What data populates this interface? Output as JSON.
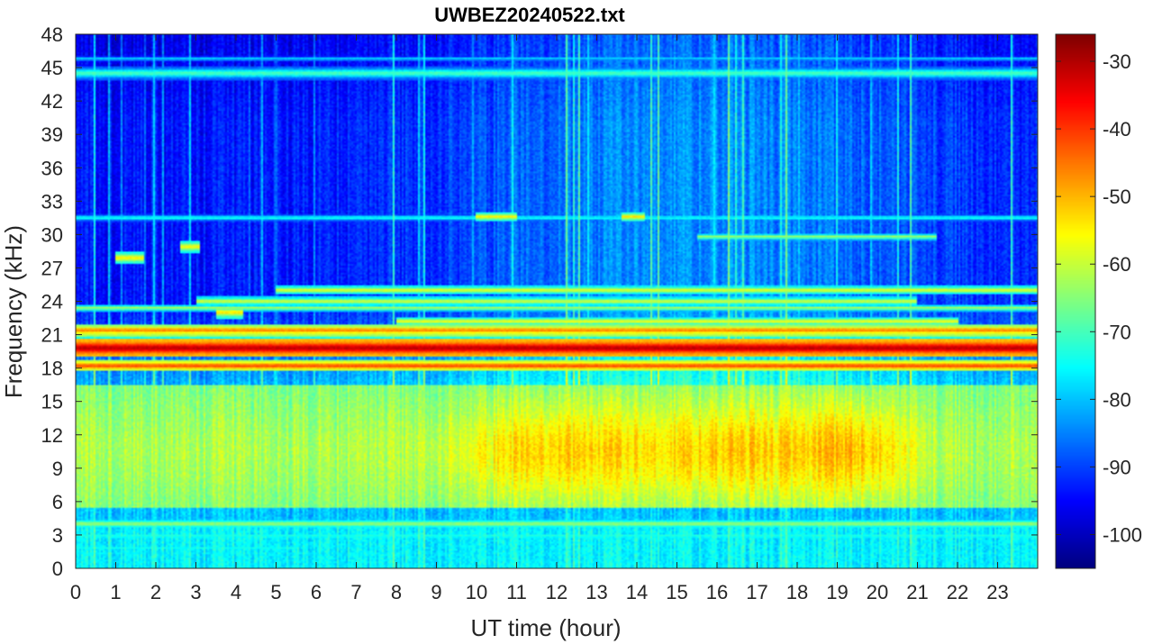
{
  "chart_data": {
    "type": "heatmap",
    "title": "UWBEZ20240522.txt",
    "xlabel": "UT time (hour)",
    "ylabel": "Frequency (kHz)",
    "xlim": [
      0,
      24
    ],
    "ylim": [
      0,
      48
    ],
    "x_ticks": [
      0,
      1,
      2,
      3,
      4,
      5,
      6,
      7,
      8,
      9,
      10,
      11,
      12,
      13,
      14,
      15,
      16,
      17,
      18,
      19,
      20,
      21,
      22,
      23
    ],
    "y_ticks": [
      0,
      3,
      6,
      9,
      12,
      15,
      18,
      21,
      24,
      27,
      30,
      33,
      36,
      39,
      42,
      45,
      48
    ],
    "colorbar": {
      "colormap": "jet",
      "clim": [
        -105,
        -26
      ],
      "ticks": [
        -100,
        -90,
        -80,
        -70,
        -60,
        -50,
        -40,
        -30
      ]
    },
    "grid": false
  }
}
